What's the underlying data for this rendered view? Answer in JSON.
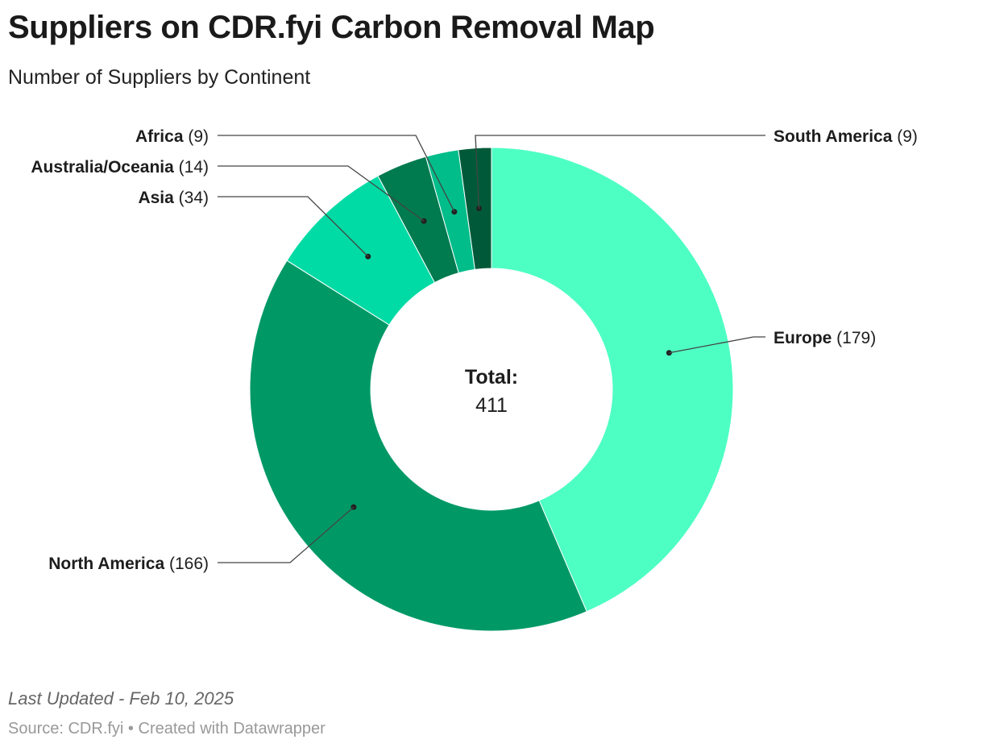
{
  "header": {
    "title": "Suppliers on CDR.fyi Carbon Removal Map",
    "subtitle": "Number of Suppliers by Continent"
  },
  "footer": {
    "note": "Last Updated - Feb 10, 2025",
    "source": "Source: CDR.fyi",
    "separator": " • ",
    "credit": "Created with Datawrapper"
  },
  "chart_data": {
    "type": "pie",
    "variant": "donut",
    "center_label": "Total:",
    "center_value": "411",
    "categories": [
      "Europe",
      "North America",
      "Asia",
      "Australia/Oceania",
      "Africa",
      "South America"
    ],
    "values": [
      179,
      166,
      34,
      14,
      9,
      9
    ],
    "colors": [
      "#4effc4",
      "#009966",
      "#00dba5",
      "#007a4f",
      "#00bd8a",
      "#005a39"
    ]
  }
}
